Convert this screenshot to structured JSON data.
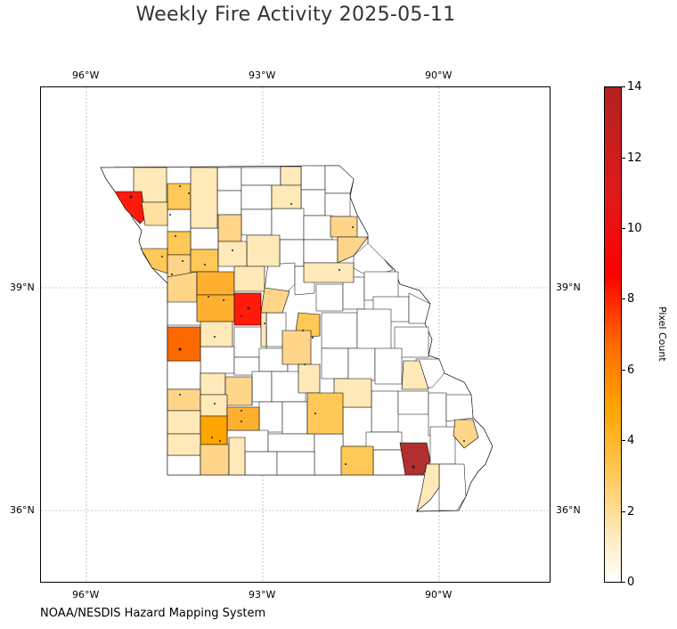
{
  "title": "Weekly Fire Activity 2025-05-11",
  "source": "NOAA/NESDIS Hazard Mapping System",
  "colorbar": {
    "label": "Pixel Count",
    "ticks": [
      "0",
      "2",
      "4",
      "6",
      "8",
      "10",
      "12",
      "14"
    ],
    "min": 0,
    "max": 14,
    "colors": [
      "#ffffff",
      "#ffe9b8",
      "#ffc857",
      "#ffa500",
      "#ff6a00",
      "#ff0000",
      "#b22222"
    ]
  },
  "axes": {
    "lon_ticks": [
      "96°W",
      "93°W",
      "90°W"
    ],
    "lat_ticks": [
      "39°N",
      "36°N"
    ]
  },
  "map": {
    "region": "Missouri counties",
    "boundary_color": "#000000",
    "gridlines": true
  }
}
